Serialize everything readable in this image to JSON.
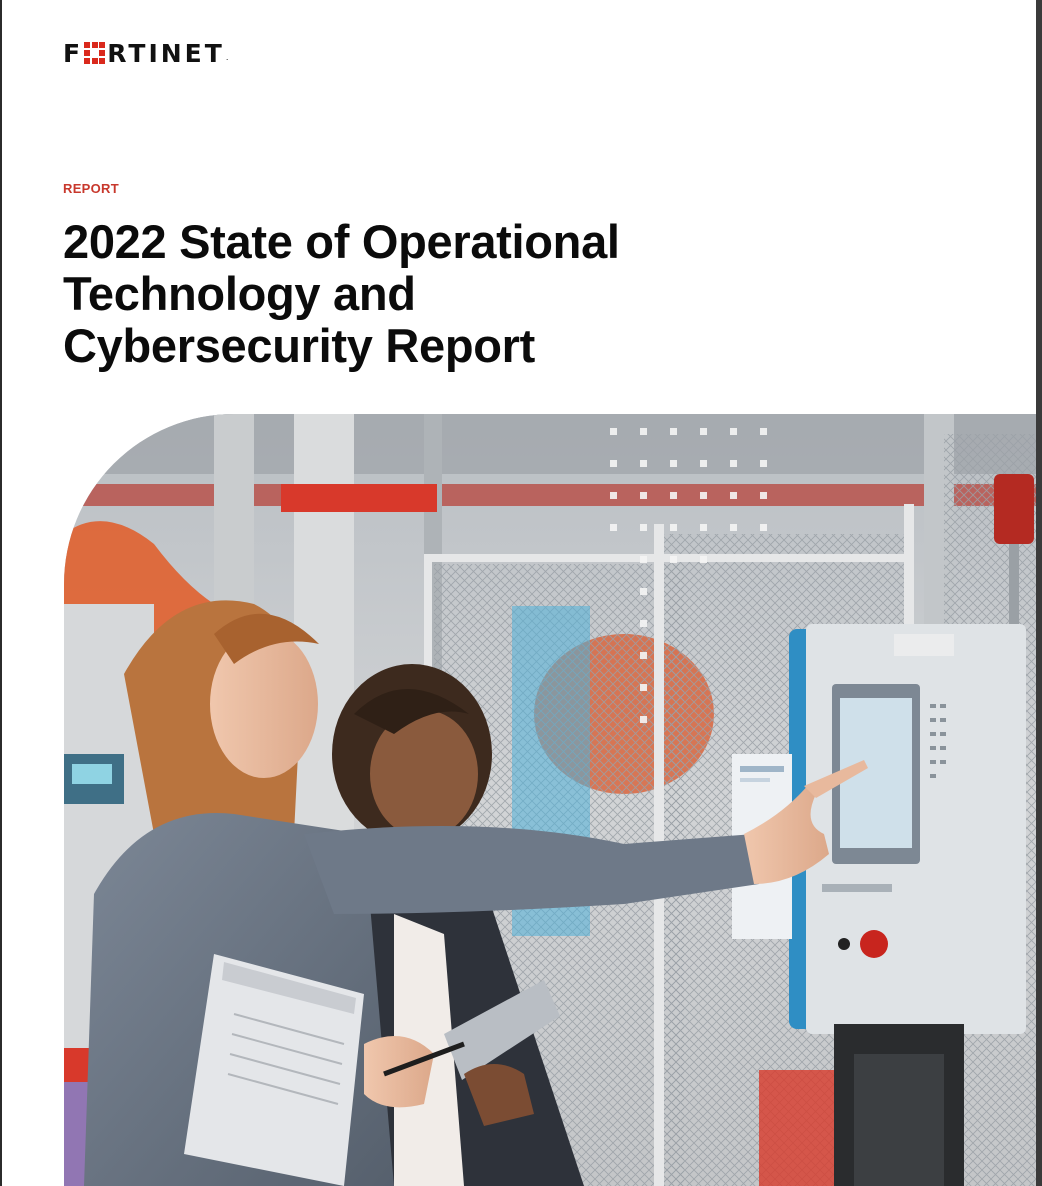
{
  "brand": {
    "logo_parts": [
      "F",
      "RTINET"
    ],
    "registered": "."
  },
  "cover": {
    "eyebrow": "REPORT",
    "title_lines": [
      "2022 State of Operational",
      "Technology and",
      "Cybersecurity Report"
    ]
  },
  "colors": {
    "brand_red": "#da291c",
    "eyebrow_red": "#c8382c",
    "accent_blue": "#2f8ec4",
    "accent_purple": "#7e5aa8"
  },
  "photo": {
    "subject": "two-women-operating-industrial-control-panel"
  }
}
